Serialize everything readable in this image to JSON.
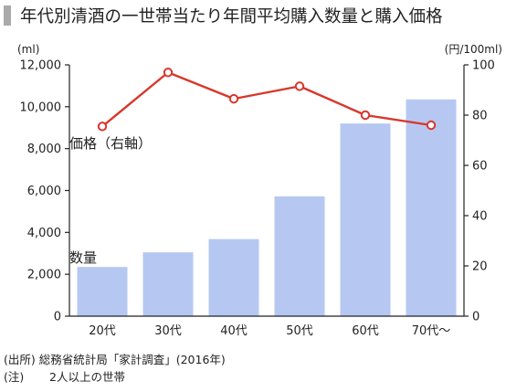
{
  "title": "年代別清酒の一世帯当たり年間平均購入数量と購入価格",
  "chart_data": {
    "type": "bar+line",
    "categories": [
      "20代",
      "30代",
      "40代",
      "50代",
      "60代",
      "70代〜"
    ],
    "series": [
      {
        "name": "数量",
        "type": "bar",
        "axis": "left",
        "unit": "(ml)",
        "values": [
          2350,
          3050,
          3680,
          5720,
          9200,
          10350
        ]
      },
      {
        "name": "価格（右軸）",
        "type": "line",
        "axis": "right",
        "unit": "(円/100ml)",
        "values": [
          75.5,
          97,
          86.5,
          91.5,
          80,
          76
        ]
      }
    ],
    "left_axis": {
      "label": "(ml)",
      "ylim": [
        0,
        12000
      ],
      "ticks": [
        0,
        2000,
        4000,
        6000,
        8000,
        10000,
        12000
      ],
      "tick_labels": [
        "0",
        "2,000",
        "4,000",
        "6,000",
        "8,000",
        "10,000",
        "12,000"
      ]
    },
    "right_axis": {
      "label": "(円/100ml)",
      "ylim": [
        0,
        100
      ],
      "ticks": [
        0,
        20,
        40,
        60,
        80,
        100
      ],
      "tick_labels": [
        "0",
        "20",
        "40",
        "60",
        "80",
        "100"
      ]
    },
    "grid": false,
    "colors": {
      "bar": "#b6c8f2",
      "line": "#d8372b",
      "axis": "#222222"
    }
  },
  "footer": {
    "source": "(出所) 総務省統計局「家計調査」(2016年)",
    "note_label": "(注)",
    "note_text": "2人以上の世帯"
  }
}
